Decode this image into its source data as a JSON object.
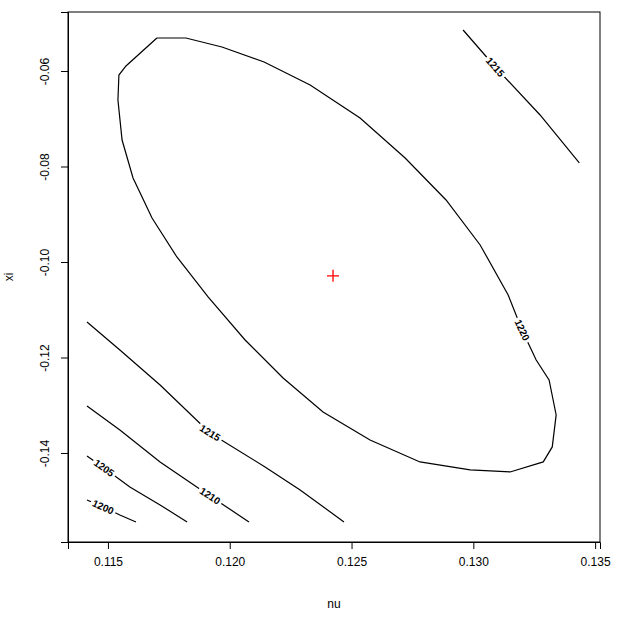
{
  "chart_data": {
    "type": "contour",
    "xlabel": "nu",
    "ylabel": "xi",
    "xlim": [
      0.11336,
      0.1352
    ],
    "ylim": [
      -0.15864,
      -0.04764
    ],
    "xticks": [
      0.115,
      {
        "value": 0.12,
        "label": "0.120"
      },
      0.125,
      {
        "value": 0.13,
        "label": "0.130"
      },
      0.135
    ],
    "yticks": [
      -0.14,
      -0.12,
      {
        "value": -0.1,
        "label": "-0.10"
      },
      -0.08,
      -0.06
    ],
    "series": [
      {
        "type": "line",
        "level": 1220,
        "color": "#000000",
        "line_style": "solid",
        "x": [
          0.11701,
          0.1182,
          0.11968,
          0.12141,
          0.1233,
          0.12535,
          0.1272,
          0.12888,
          0.13028,
          0.13143,
          0.132,
          0.13258,
          0.13311,
          0.1334,
          0.13324,
          0.13287,
          0.13151,
          0.12987,
          0.12781,
          0.12576,
          0.12383,
          0.12219,
          0.12063,
          0.11911,
          0.11783,
          0.11681,
          0.11603,
          0.11558,
          0.11541,
          0.11545,
          0.11574,
          0.11701
        ],
        "y": [
          -0.05309,
          -0.05309,
          -0.05497,
          -0.05811,
          -0.06293,
          -0.06984,
          -0.07822,
          -0.08701,
          -0.09643,
          -0.1069,
          -0.11423,
          -0.12052,
          -0.1247,
          -0.13203,
          -0.13873,
          -0.14187,
          -0.14397,
          -0.14355,
          -0.14187,
          -0.13727,
          -0.1314,
          -0.12428,
          -0.11633,
          -0.10732,
          -0.09895,
          -0.09078,
          -0.0824,
          -0.07445,
          -0.06607,
          -0.06084,
          -0.05895,
          -0.05309
        ],
        "label_x": 0.132,
        "label_y": -0.11423
      },
      {
        "type": "line",
        "level": 1215,
        "color": "#000000",
        "line_style": "solid",
        "x": [
          0.12958,
          0.1309,
          0.13274,
          0.13435
        ],
        "y": [
          -0.05141,
          -0.05916,
          -0.06921,
          -0.07926
        ],
        "label_x": 0.1309,
        "label_y": -0.05916
      },
      {
        "type": "line",
        "level": 1215,
        "color": "#000000",
        "line_style": "solid",
        "x": [
          0.11414,
          0.11549,
          0.11714,
          0.11919,
          0.12145,
          0.12289,
          0.12469
        ],
        "y": [
          -0.11256,
          -0.11842,
          -0.12575,
          -0.1358,
          -0.14292,
          -0.14774,
          -0.15444
        ],
        "label_x": 0.11919,
        "label_y": -0.1358
      },
      {
        "type": "line",
        "level": 1210,
        "color": "#000000",
        "line_style": "solid",
        "x": [
          0.11414,
          0.11549,
          0.11714,
          0.11919,
          0.12079
        ],
        "y": [
          -0.13015,
          -0.13517,
          -0.14187,
          -0.14899,
          -0.15444
        ],
        "label_x": 0.11919,
        "label_y": -0.14899
      },
      {
        "type": "line",
        "level": 1205,
        "color": "#000000",
        "line_style": "solid",
        "x": [
          0.11414,
          0.11484,
          0.1159,
          0.11714,
          0.11825
        ],
        "y": [
          -0.14062,
          -0.14313,
          -0.14711,
          -0.15088,
          -0.15444
        ],
        "label_x": 0.11484,
        "label_y": -0.14313
      },
      {
        "type": "line",
        "level": 1200,
        "color": "#000000",
        "line_style": "solid",
        "x": [
          0.11414,
          0.1148,
          0.11549,
          0.11615
        ],
        "y": [
          -0.14983,
          -0.1513,
          -0.15297,
          -0.15444
        ],
        "label_x": 0.1148,
        "label_y": -0.1513
      },
      {
        "type": "scatter",
        "marker": "plus",
        "color": "#ff0000",
        "x": [
          0.12424
        ],
        "y": [
          -0.1029
        ]
      }
    ]
  }
}
